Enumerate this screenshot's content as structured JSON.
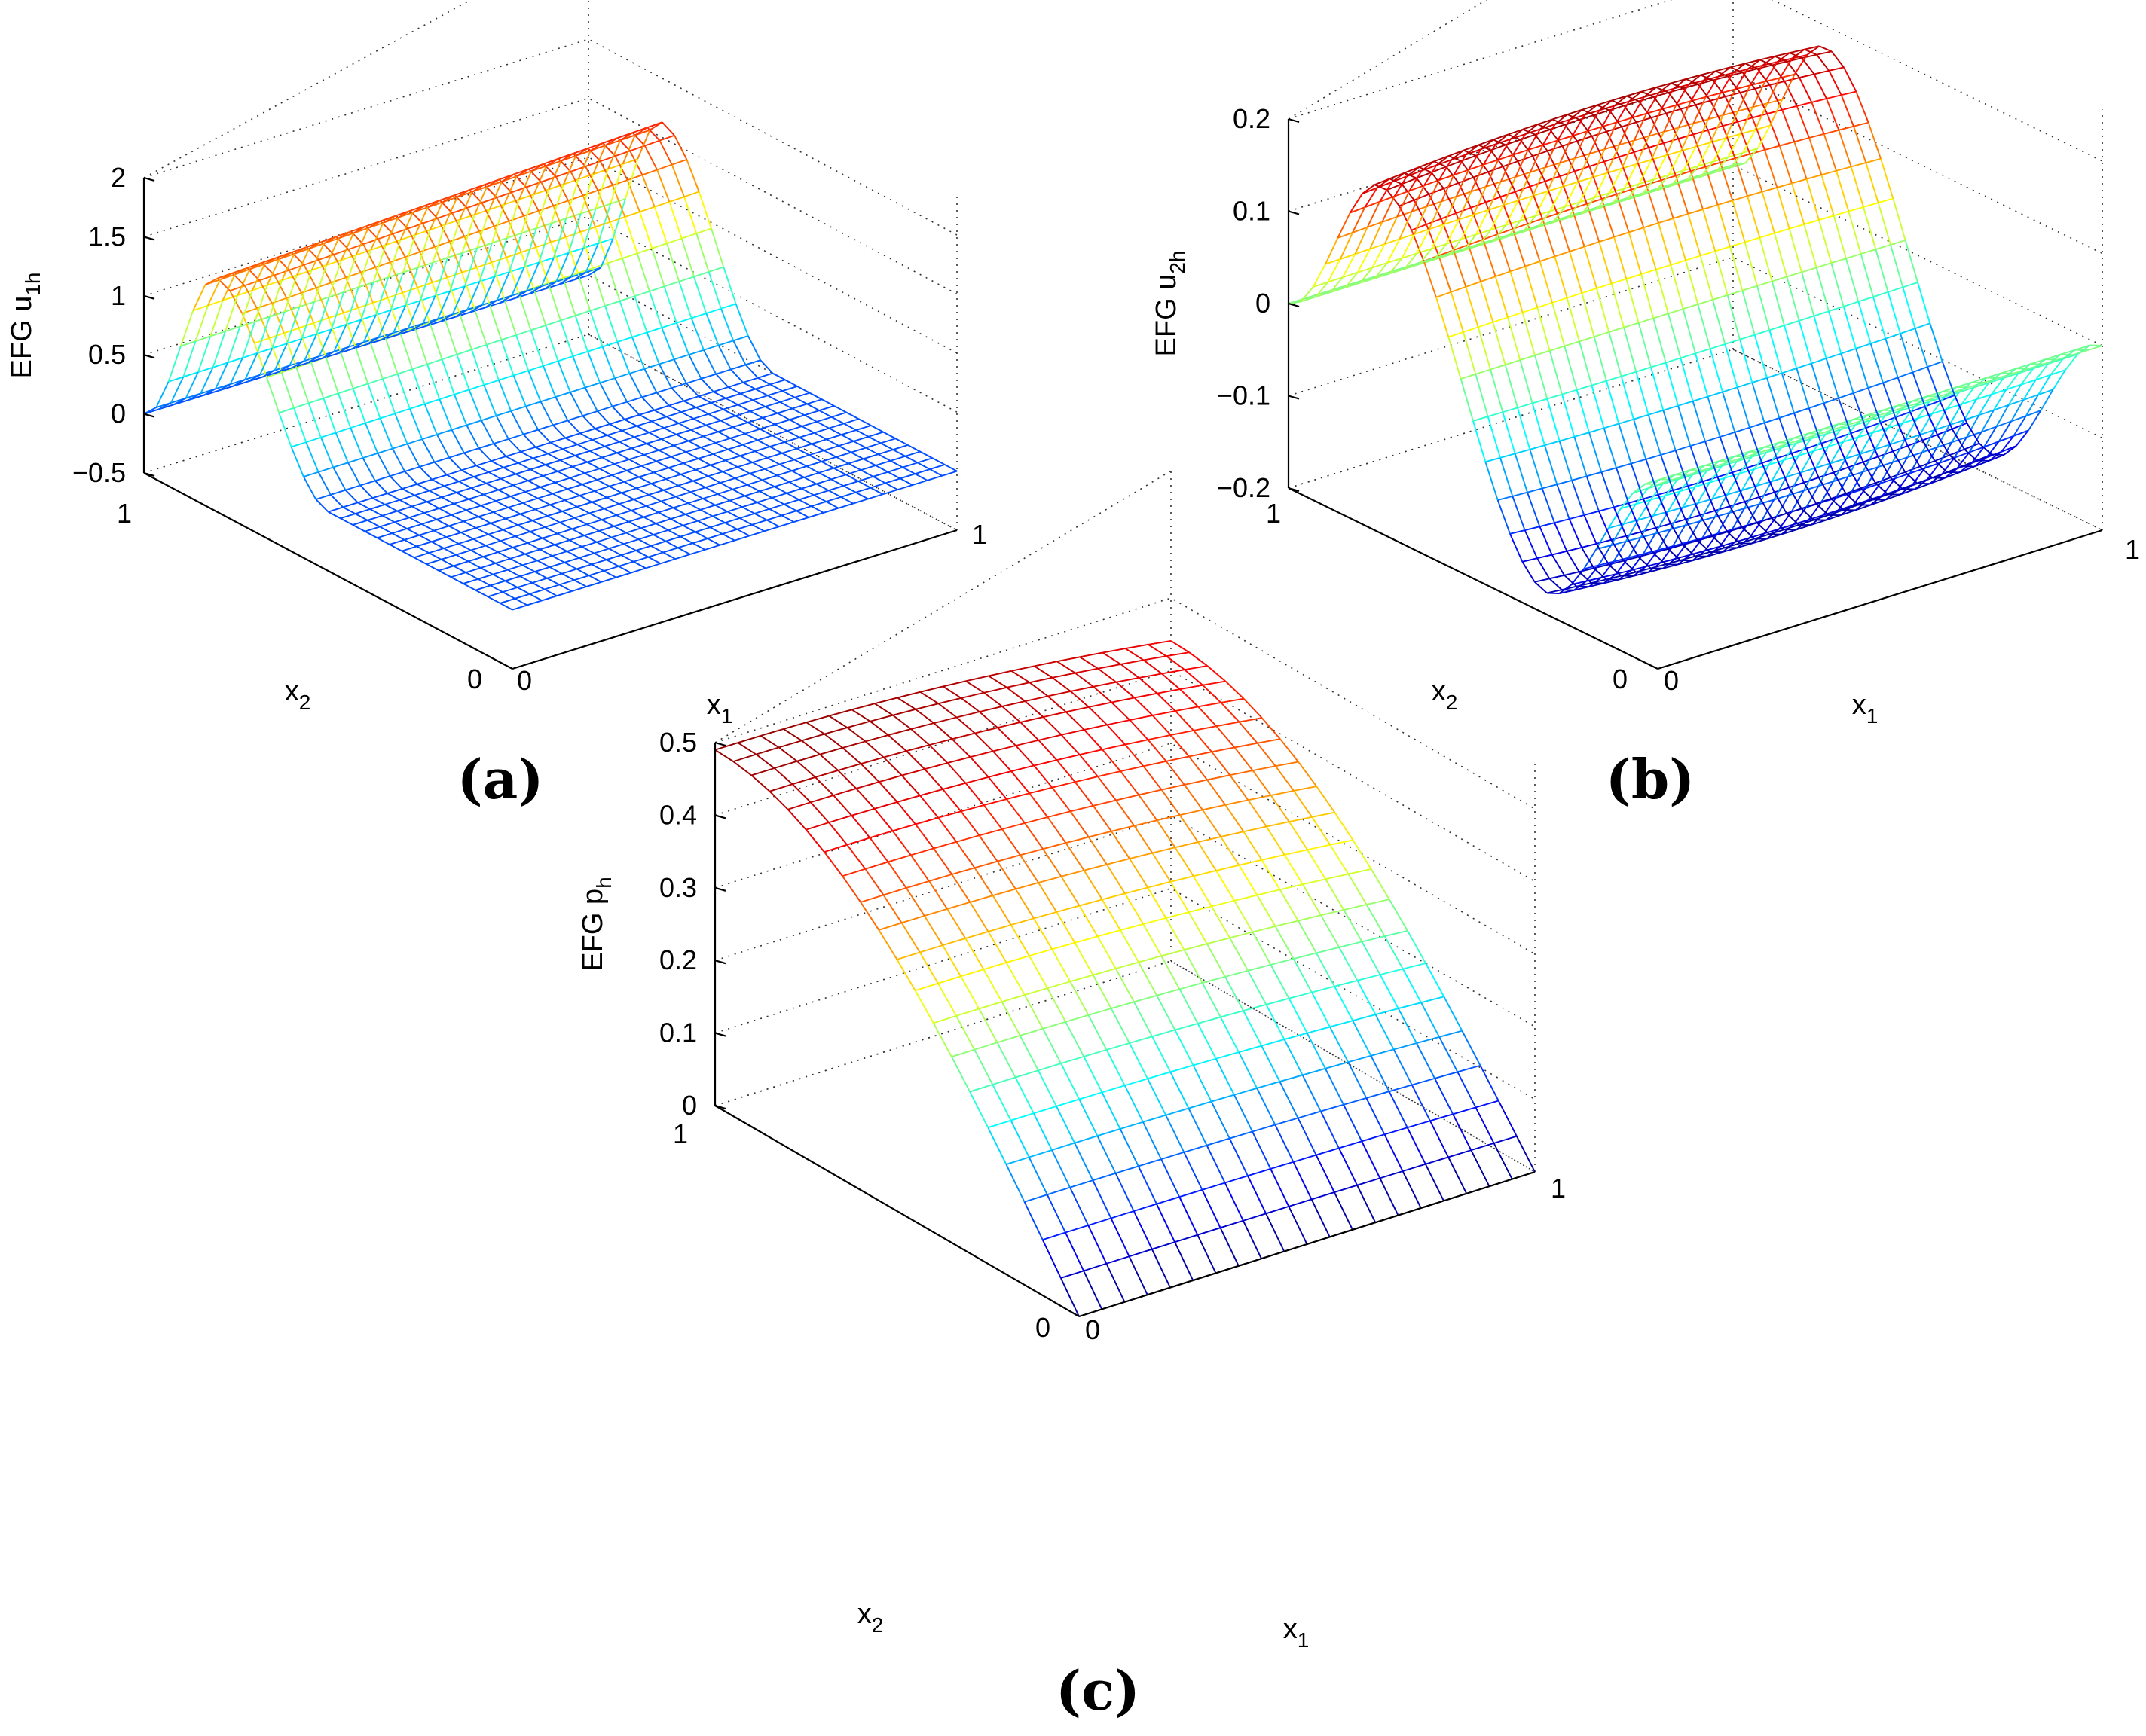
{
  "chart_data": [
    {
      "type": "surface",
      "panel_label": "(a)",
      "zlabel_main": "EFG u",
      "zlabel_sub": "1h",
      "xlabel_main": "x",
      "xlabel_sub": "1",
      "ylabel_main": "x",
      "ylabel_sub": "2",
      "x_ticks": [
        "0",
        "1"
      ],
      "y_ticks": [
        "0",
        "1"
      ],
      "z_ticks": [
        "2",
        "1.5",
        "1",
        "0.5",
        "0",
        "−0.5"
      ],
      "x_range": [
        0,
        1
      ],
      "y_range": [
        0,
        1
      ],
      "zlim": [
        -0.5,
        2
      ],
      "grid": true,
      "colormap": "jet",
      "mesh_size": 30,
      "function": "u1h",
      "z_at_y": [
        {
          "y": 0.0,
          "z": 0.0
        },
        {
          "y": 0.5,
          "z": 0.0
        },
        {
          "y": 0.8,
          "z": 1.48
        },
        {
          "y": 1.0,
          "z": 0.0
        }
      ]
    },
    {
      "type": "surface",
      "panel_label": "(b)",
      "zlabel_main": "EFG u",
      "zlabel_sub": "2h",
      "xlabel_main": "x",
      "xlabel_sub": "1",
      "ylabel_main": "x",
      "ylabel_sub": "2",
      "x_ticks": [
        "0",
        "1"
      ],
      "y_ticks": [
        "0",
        "1"
      ],
      "z_ticks": [
        "0.2",
        "0.1",
        "0",
        "−0.1",
        "−0.2"
      ],
      "x_range": [
        0,
        1
      ],
      "y_range": [
        0,
        1
      ],
      "zlim": [
        -0.2,
        0.2
      ],
      "grid": true,
      "colormap": "jet",
      "mesh_size": 30,
      "function": "u2h",
      "z_at_y": [
        {
          "y": 0.0,
          "z": 0.0
        },
        {
          "y": 0.3,
          "z": -0.19
        },
        {
          "y": 0.75,
          "z": 0.19
        },
        {
          "y": 1.0,
          "z": 0.0
        }
      ]
    },
    {
      "type": "surface",
      "panel_label": "(c)",
      "zlabel_main": "EFG p",
      "zlabel_sub": "h",
      "xlabel_main": "x",
      "xlabel_sub": "1",
      "ylabel_main": "x",
      "ylabel_sub": "2",
      "x_ticks": [
        "0",
        "1"
      ],
      "y_ticks": [
        "0",
        "1"
      ],
      "z_ticks": [
        "0.5",
        "0.4",
        "0.3",
        "0.2",
        "0.1",
        "0"
      ],
      "x_range": [
        0,
        1
      ],
      "y_range": [
        0,
        1
      ],
      "zlim": [
        0,
        0.5
      ],
      "grid": true,
      "colormap": "jet",
      "mesh_size": 20,
      "function": "ph",
      "z_at_y": [
        {
          "y": 0.0,
          "z": 0.0
        },
        {
          "y": 0.5,
          "z": 0.33
        },
        {
          "y": 1.0,
          "z": 0.49
        }
      ]
    }
  ]
}
